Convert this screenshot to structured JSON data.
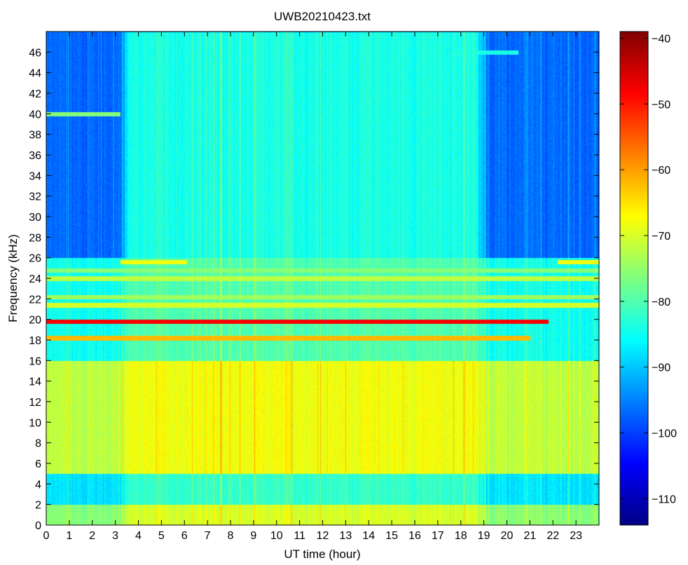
{
  "chart_data": {
    "type": "heatmap",
    "title": "UWB20210423.txt",
    "xlabel": "UT time (hour)",
    "ylabel": "Frequency (kHz)",
    "xlim": [
      0,
      24
    ],
    "ylim": [
      0,
      48
    ],
    "x_ticks": [
      0,
      1,
      2,
      3,
      4,
      5,
      6,
      7,
      8,
      9,
      10,
      11,
      12,
      13,
      14,
      15,
      16,
      17,
      18,
      19,
      20,
      21,
      22,
      23
    ],
    "y_ticks": [
      0,
      2,
      4,
      6,
      8,
      10,
      12,
      14,
      16,
      18,
      20,
      22,
      24,
      26,
      28,
      30,
      32,
      34,
      36,
      38,
      40,
      42,
      44,
      46
    ],
    "colorbar": {
      "colormap": "jet",
      "range": [
        -114,
        -39
      ],
      "ticks": [
        -40,
        -50,
        -60,
        -70,
        -80,
        -90,
        -100,
        -110
      ]
    },
    "background_levels": [
      {
        "freq_range": [
          0,
          2
        ],
        "level_day": -70,
        "level_night": -76
      },
      {
        "freq_range": [
          2,
          5
        ],
        "level_day": -82,
        "level_night": -88
      },
      {
        "freq_range": [
          5,
          16
        ],
        "level_day": -68,
        "level_night": -72
      },
      {
        "freq_range": [
          16,
          26
        ],
        "level_day": -80,
        "level_night": -85
      },
      {
        "freq_range": [
          26,
          48
        ],
        "level_day": -84,
        "level_night": -97
      }
    ],
    "day_interval_hours": [
      3.2,
      19.2
    ],
    "transmitter_lines": [
      {
        "freq": 19.8,
        "time_range": [
          0,
          21.8
        ],
        "level": -48
      },
      {
        "freq": 18.2,
        "time_range": [
          0,
          21.0
        ],
        "level": -62
      },
      {
        "freq": 21.4,
        "time_range": [
          0,
          24
        ],
        "level": -70
      },
      {
        "freq": 22.2,
        "time_range": [
          0,
          24
        ],
        "level": -74
      },
      {
        "freq": 24.0,
        "time_range": [
          0,
          24
        ],
        "level": -72
      },
      {
        "freq": 24.8,
        "time_range": [
          0,
          24
        ],
        "level": -76
      },
      {
        "freq": 25.6,
        "time_range": [
          3.2,
          6.1
        ],
        "level": -68
      },
      {
        "freq": 25.6,
        "time_range": [
          22.2,
          24
        ],
        "level": -68
      },
      {
        "freq": 40.0,
        "time_range": [
          0,
          3.2
        ],
        "level": -76
      },
      {
        "freq": 46.0,
        "time_range": [
          17.6,
          20.5
        ],
        "level": -84
      }
    ]
  }
}
